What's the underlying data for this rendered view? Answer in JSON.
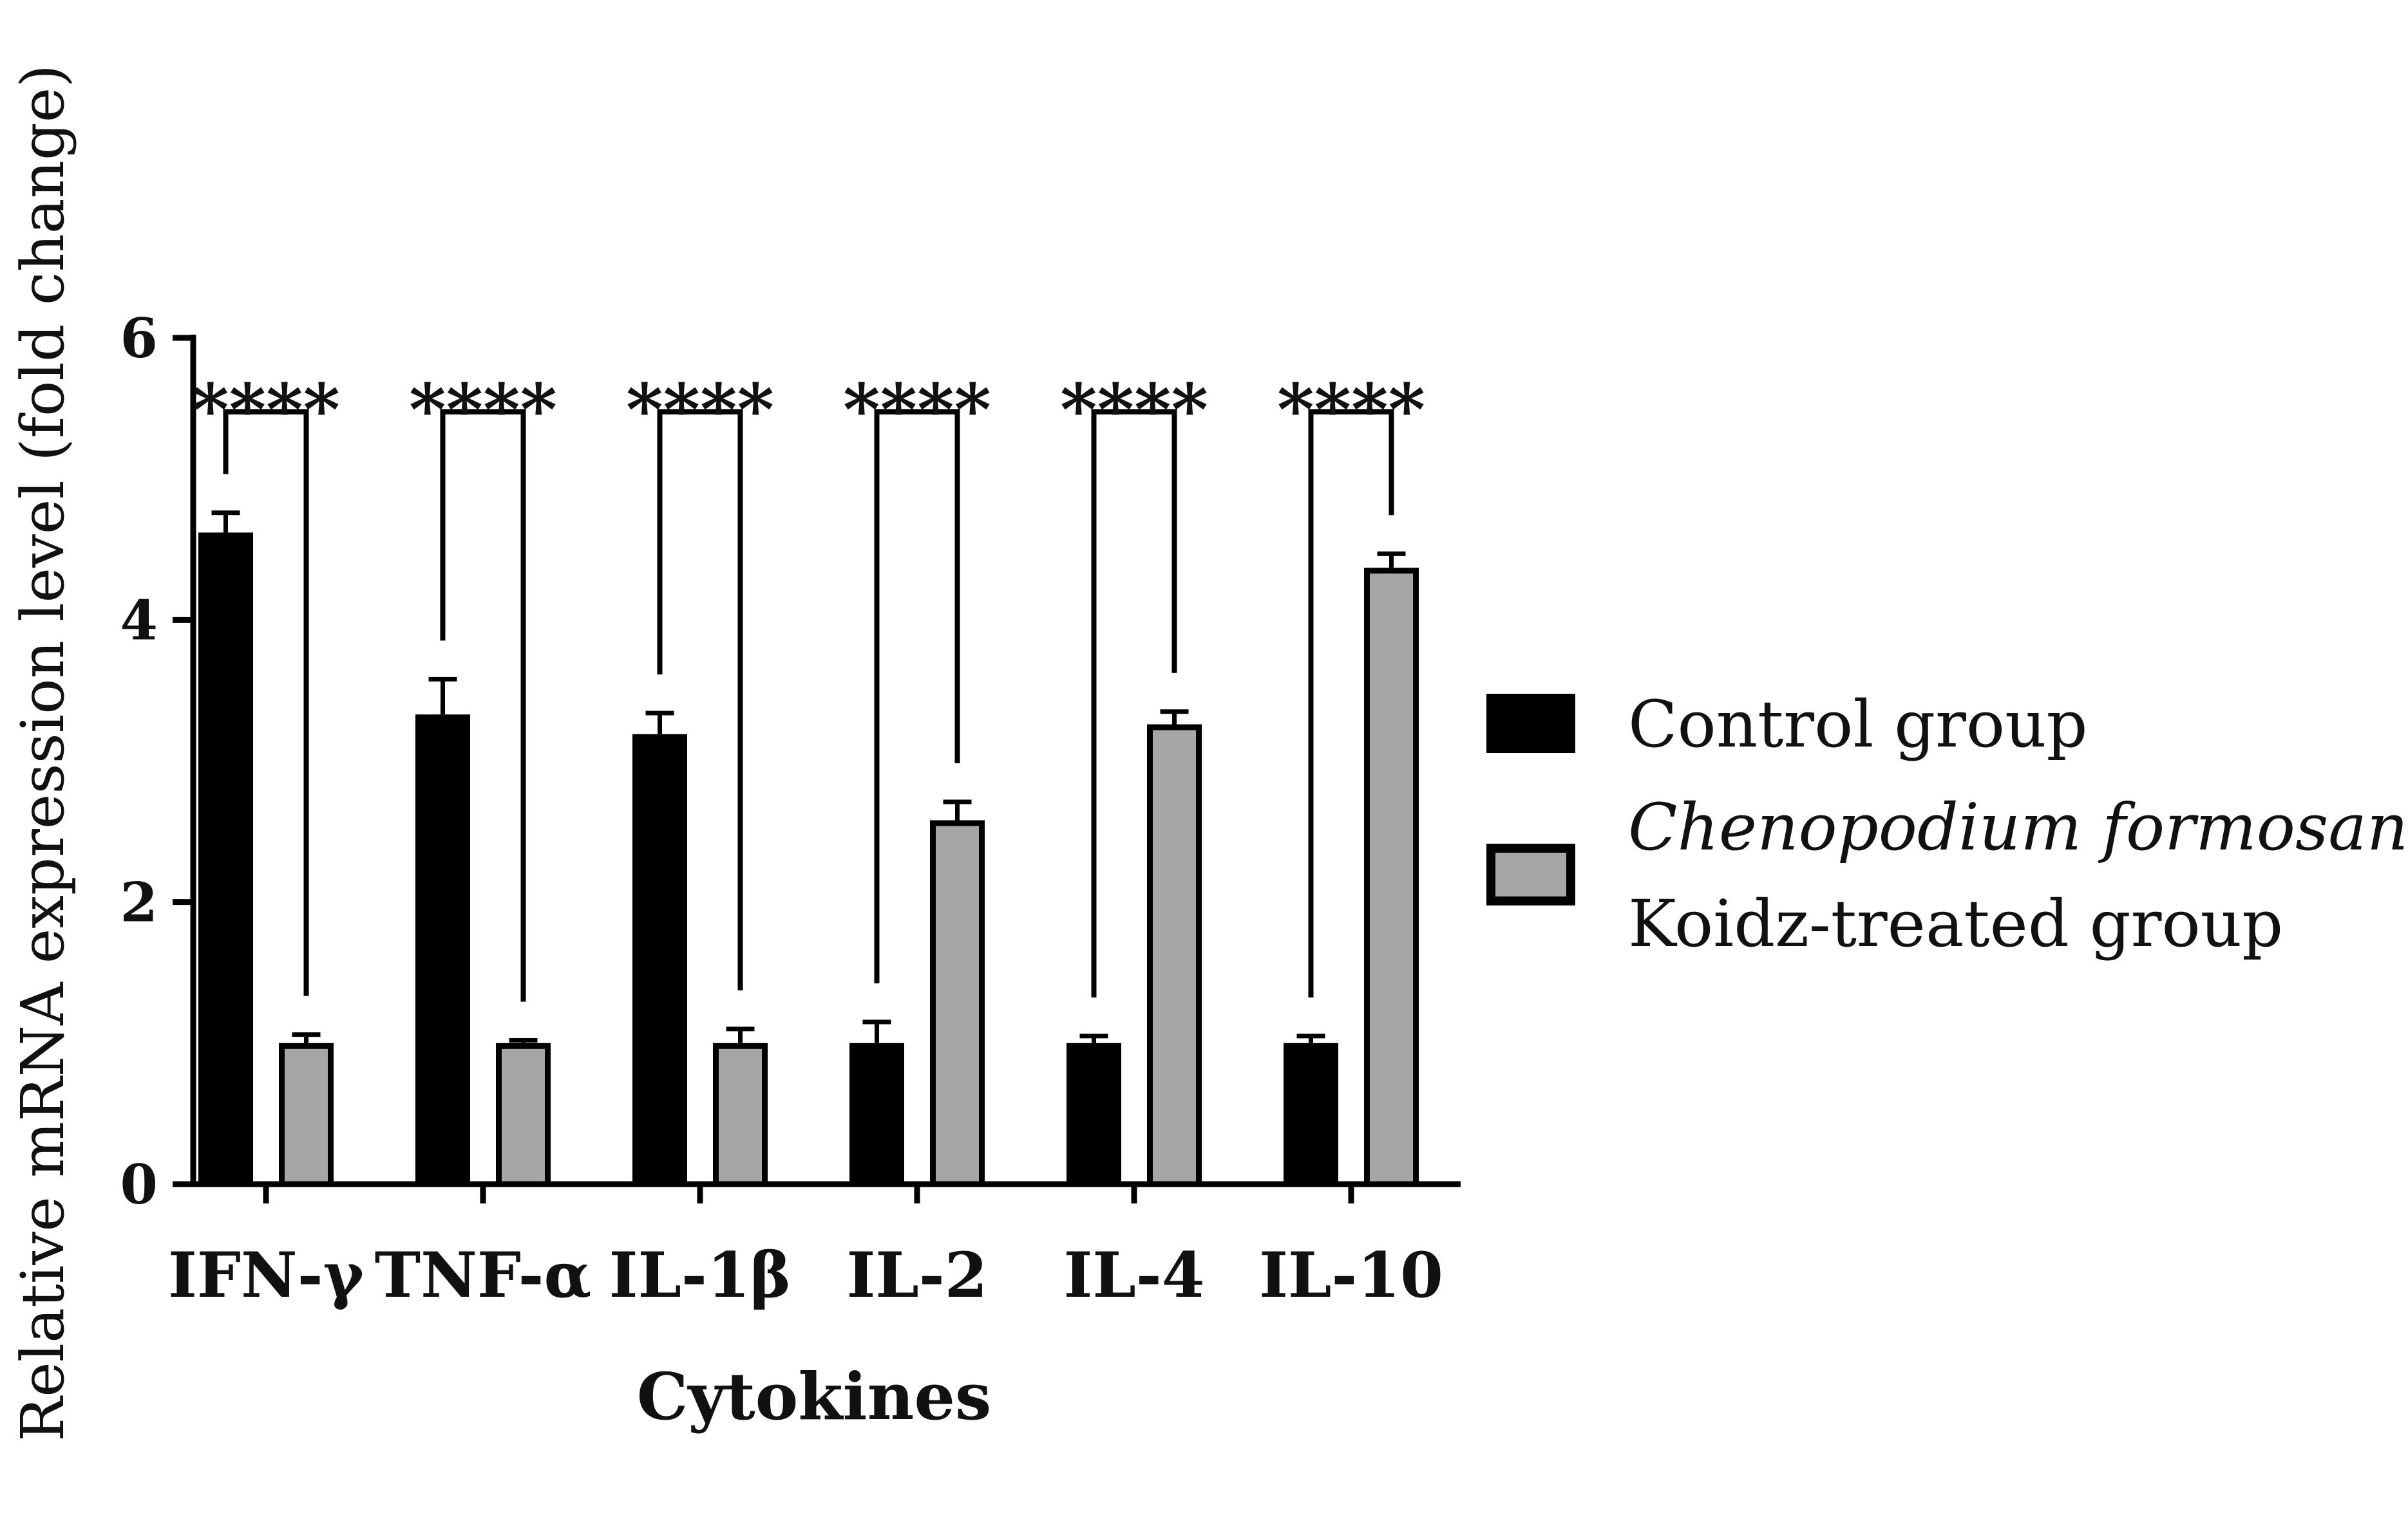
{
  "chart_data": {
    "type": "bar",
    "title": "",
    "xlabel": "Cytokines",
    "ylabel": "Relative mRNA expression level (fold change)",
    "ylim": [
      0,
      6
    ],
    "yticks": [
      0,
      2,
      4,
      6
    ],
    "grid": false,
    "legend_position": "right",
    "categories": [
      "IFN-γ",
      "TNF-α",
      "IL-1β",
      "IL-2",
      "IL-4",
      "IL-10"
    ],
    "series": [
      {
        "name": "Control group",
        "color": "#000000",
        "values": [
          4.62,
          3.33,
          3.19,
          1.0,
          1.0,
          1.0
        ],
        "errors": [
          0.14,
          0.25,
          0.15,
          0.15,
          0.05,
          0.05
        ]
      },
      {
        "name": "Chenopodium formosanum Koidz-treated group",
        "color": "#a6a6a6",
        "values": [
          1.0,
          1.0,
          1.0,
          2.58,
          3.26,
          4.37
        ],
        "errors": [
          0.06,
          0.02,
          0.1,
          0.13,
          0.09,
          0.1
        ]
      }
    ],
    "significance": [
      "****",
      "****",
      "****",
      "****",
      "****",
      "****"
    ]
  },
  "legend": {
    "control_label": "Control group",
    "treated_label_italic": "Chenopodium formosanum",
    "treated_label_rest": "Koidz-treated group"
  }
}
